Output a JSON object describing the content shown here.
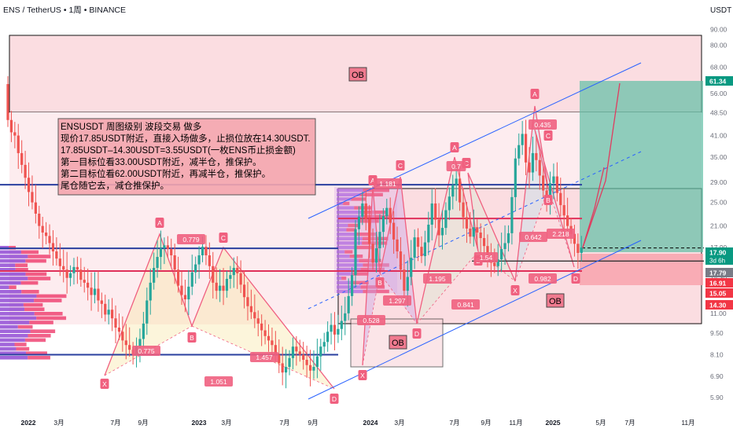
{
  "header": {
    "symbol": "ENS",
    "pair": "TetherUS",
    "interval": "1周",
    "exchange": "BINANCE",
    "currency": "USDT"
  },
  "annotation": {
    "lines": [
      "ENSUSDT 周图级别 波段交易 做多",
      "现价17.85USDT附近，直接入场做多，止损位放在14.30USDT.",
      "17.85USDT–14.30USDT=3.55USDT(一枚ENS币止损金额)",
      "第一目标位看33.00USDT附近，减半仓，推保护。",
      "第二目标位看62.00USDT附近，再减半仓，推保护。",
      "尾仓随它去，减仓推保护。"
    ]
  },
  "zones": {
    "ob_label": "OB"
  },
  "price_tags": [
    {
      "label": "61.34",
      "color": "#089981"
    },
    {
      "label": "17.90",
      "color": "#089981",
      "sub": "3d 6h"
    },
    {
      "label": "17.79",
      "color": "#787b86"
    },
    {
      "label": "16.91",
      "color": "#f23645"
    },
    {
      "label": "15.05",
      "color": "#f23645"
    },
    {
      "label": "14.30",
      "color": "#f23645"
    }
  ],
  "pattern_labels": [
    "X",
    "A",
    "B",
    "C",
    "D"
  ],
  "ratio_labels": {
    "p1": [
      "0.779",
      "0.775",
      "1.457",
      "1.051"
    ],
    "p2": [
      "1.181",
      "1.297",
      "0.528",
      "1.195",
      "0.841"
    ],
    "p3": [
      "0.7",
      "1.54",
      "0.982"
    ],
    "p4": [
      "0.435",
      "0.642",
      "2.218"
    ]
  },
  "colors": {
    "up": "#26a69a",
    "down": "#ef5350",
    "blue_line": "#2a3f9f",
    "red_line": "#e0305a",
    "pattern": "#f06080",
    "channel": "#2962ff",
    "target_box": "#5fbfa5",
    "stop_box": "#f8a3ad",
    "zone": "#fbdde1",
    "label_bg": "#f0607f"
  },
  "chart_data": {
    "type": "candlestick",
    "title": "ENS / TetherUS • 1周 • BINANCE",
    "y_scale": "log",
    "ylim": [
      5.6,
      95
    ],
    "y_ticks": [
      "90.00",
      "80.00",
      "68.00",
      "56.00",
      "48.50",
      "41.00",
      "35.00",
      "29.00",
      "25.00",
      "21.00",
      "17.90",
      "14.30",
      "11.00",
      "9.50",
      "8.10",
      "6.90",
      "5.90"
    ],
    "x_ticks": [
      "2022",
      "3月",
      "7月",
      "9月",
      "2023",
      "3月",
      "7月",
      "9月",
      "2024",
      "3月",
      "7月",
      "9月",
      "11月",
      "2025",
      "5月",
      "7月",
      "11月"
    ],
    "key_levels": [
      28.5,
      22.2,
      17.8,
      16.2,
      15.05
    ],
    "entry": 17.85,
    "stop_loss": 14.3,
    "target_1": 33.0,
    "target_2": 62.0,
    "last_price": 17.9,
    "weekly_closes": [
      46,
      42,
      41,
      36,
      33,
      30,
      27,
      25,
      23,
      21,
      20,
      19.5,
      18.5,
      17.4,
      16.5,
      15.6,
      15.2,
      14.3,
      14.8,
      15.5,
      15.2,
      14.1,
      13.8,
      13.3,
      12.6,
      13.2,
      12.1,
      11.8,
      10.9,
      11.3,
      10.6,
      9.9,
      9.6,
      9.0,
      8.7,
      8.4,
      8.1,
      8.6,
      9.1,
      10.2,
      12.1,
      13.8,
      15.4,
      16.7,
      17.8,
      18.2,
      17.7,
      16.9,
      15.2,
      13.5,
      12.6,
      12.2,
      13.4,
      14.9,
      15.8,
      16.9,
      18.0,
      16.9,
      15.6,
      13.8,
      13.0,
      13.5,
      13.0,
      14.2,
      14.6,
      15.4,
      14.8,
      13.6,
      12.4,
      11.6,
      11.1,
      10.6,
      10.2,
      9.7,
      9.3,
      9.0,
      8.7,
      8.1,
      7.6,
      7.1,
      7.4,
      7.9,
      8.6,
      8.3,
      8.1,
      7.8,
      7.5,
      7.2,
      7.4,
      8.0,
      8.6,
      8.9,
      9.6,
      10.1,
      9.4,
      9.8,
      10.4,
      11.0,
      12.5,
      14.6,
      20.5,
      22.5,
      24.8,
      22.1,
      18.4,
      16.0,
      17.8,
      20.1,
      22.6,
      24.0,
      21.5,
      19.0,
      17.4,
      15.2,
      13.0,
      14.4,
      16.6,
      19.3,
      18.0,
      16.8,
      18.6,
      21.2,
      24.8,
      22.0,
      19.6,
      20.7,
      23.6,
      26.1,
      28.4,
      29.8,
      25.0,
      22.4,
      20.6,
      19.4,
      20.8,
      20.0,
      19.2,
      18.1,
      16.8,
      16.0,
      15.6,
      16.4,
      17.7,
      18.5,
      19.9,
      26.0,
      34.6,
      38.2,
      41.5,
      33.6,
      31.2,
      36.0,
      34.2,
      30.5,
      27.3,
      25.1,
      28.8,
      30.3,
      26.8,
      24.5,
      22.7,
      21.0,
      19.8,
      18.4,
      17.2,
      17.9
    ]
  }
}
